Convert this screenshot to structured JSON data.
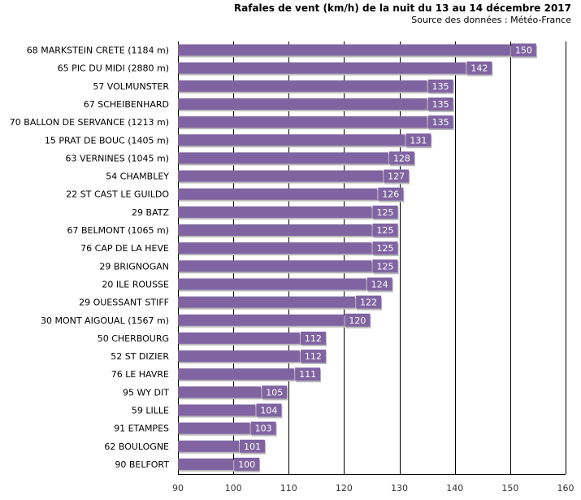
{
  "chart_data": {
    "type": "bar",
    "orientation": "horizontal",
    "title": "Rafales de vent (km/h) de la nuit du 13 au 14 décembre 2017",
    "subtitle": "Source des données : Météo-France",
    "xlabel": "",
    "ylabel": "",
    "xlim": [
      90,
      160
    ],
    "xticks": [
      90,
      100,
      110,
      120,
      130,
      140,
      150,
      160
    ],
    "grid": true,
    "bar_color": "#8064a2",
    "label_bg_color": "#8064a2",
    "categories": [
      "68 MARKSTEIN CRETE (1184 m)",
      "65 PIC DU MIDI (2880 m)",
      "57 VOLMUNSTER",
      "67 SCHEIBENHARD",
      "70 BALLON DE SERVANCE (1213 m)",
      "15 PRAT DE BOUC (1405 m)",
      "63 VERNINES (1045 m)",
      "54 CHAMBLEY",
      "22 ST CAST LE GUILDO",
      "29 BATZ",
      "67 BELMONT (1065 m)",
      "76 CAP DE LA HEVE",
      "29 BRIGNOGAN",
      "20 ILE ROUSSE",
      "29 OUESSANT STIFF",
      "30 MONT AIGOUAL (1567 m)",
      "50 CHERBOURG",
      "52 ST DIZIER",
      "76 LE HAVRE",
      "95 WY DIT",
      "59 LILLE",
      "91 ETAMPES",
      "62 BOULOGNE",
      "90 BELFORT"
    ],
    "values": [
      150,
      142,
      135,
      135,
      135,
      131,
      128,
      127,
      126,
      125,
      125,
      125,
      125,
      124,
      122,
      120,
      112,
      112,
      111,
      105,
      104,
      103,
      101,
      100
    ]
  }
}
